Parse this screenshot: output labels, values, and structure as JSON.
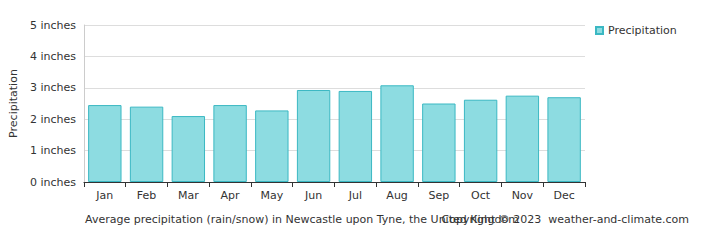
{
  "chart_data": {
    "type": "bar",
    "title": "Average precipitation (rain/snow) in Newcastle upon Tyne, the United Kingdom",
    "annotations": [
      "Copyright © 2023  weather-and-climate.com"
    ],
    "y_label": "Precipitation",
    "categories": [
      "Jan",
      "Feb",
      "Mar",
      "Apr",
      "May",
      "Jun",
      "Jul",
      "Aug",
      "Sep",
      "Oct",
      "Nov",
      "Dec"
    ],
    "series": [
      {
        "name": "Precipitation",
        "color": "#8ddce1",
        "values": [
          2.45,
          2.4,
          2.1,
          2.45,
          2.28,
          2.93,
          2.9,
          3.08,
          2.5,
          2.62,
          2.75,
          2.7
        ]
      }
    ],
    "ylim": [
      0,
      5
    ],
    "yticks": [
      {
        "value": 0,
        "label": "0 inches"
      },
      {
        "value": 1,
        "label": "1 inches"
      },
      {
        "value": 2,
        "label": "2 inches"
      },
      {
        "value": 3,
        "label": "3 inches"
      },
      {
        "value": 4,
        "label": "4 inches"
      },
      {
        "value": 5,
        "label": "5 inches"
      }
    ],
    "grid": true,
    "legend": "top-right"
  }
}
